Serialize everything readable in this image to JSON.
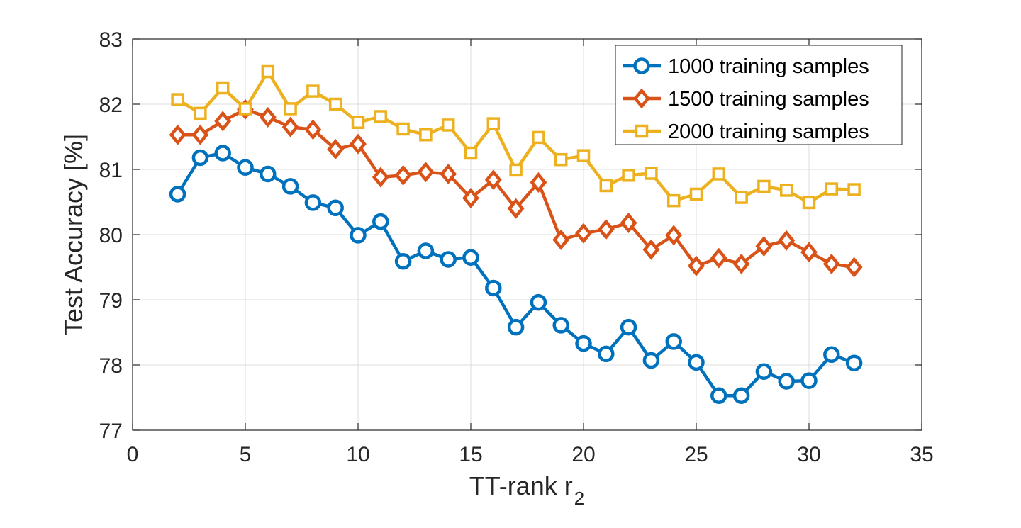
{
  "chart_data": {
    "type": "line",
    "title": "",
    "xlabel": "TT-rank r",
    "xlabel_subscript": "2",
    "ylabel": "Test Accuracy [%]",
    "xlim": [
      0,
      35
    ],
    "ylim": [
      77,
      83
    ],
    "xticks": [
      0,
      5,
      10,
      15,
      20,
      25,
      30,
      35
    ],
    "yticks": [
      77,
      78,
      79,
      80,
      81,
      82,
      83
    ],
    "grid": true,
    "legend_position": "top-right",
    "x": [
      2,
      3,
      4,
      5,
      6,
      7,
      8,
      9,
      10,
      11,
      12,
      13,
      14,
      15,
      16,
      17,
      18,
      19,
      20,
      21,
      22,
      23,
      24,
      25,
      26,
      27,
      28,
      29,
      30,
      31,
      32
    ],
    "series": [
      {
        "name": "1000 training samples",
        "color": "#0072BD",
        "marker": "circle",
        "values": [
          80.62,
          81.18,
          81.25,
          81.03,
          80.93,
          80.74,
          80.49,
          80.41,
          79.99,
          80.2,
          79.59,
          79.75,
          79.62,
          79.65,
          79.18,
          78.58,
          78.96,
          78.61,
          78.33,
          78.17,
          78.58,
          78.07,
          78.36,
          78.04,
          77.53,
          77.53,
          77.9,
          77.75,
          77.76,
          78.16,
          78.03
        ]
      },
      {
        "name": "1500 training samples",
        "color": "#D95319",
        "marker": "diamond",
        "values": [
          81.53,
          81.53,
          81.74,
          81.92,
          81.8,
          81.65,
          81.61,
          81.31,
          81.39,
          80.88,
          80.91,
          80.96,
          80.93,
          80.56,
          80.84,
          80.4,
          80.8,
          79.92,
          80.02,
          80.08,
          80.18,
          79.77,
          79.99,
          79.52,
          79.64,
          79.55,
          79.82,
          79.91,
          79.73,
          79.55,
          79.5
        ]
      },
      {
        "name": "2000 training samples",
        "color": "#EDB120",
        "marker": "square",
        "values": [
          82.07,
          81.86,
          82.25,
          81.93,
          82.5,
          81.93,
          82.2,
          82.0,
          81.72,
          81.81,
          81.62,
          81.53,
          81.68,
          81.25,
          81.7,
          80.99,
          81.49,
          81.15,
          81.21,
          80.75,
          80.91,
          80.94,
          80.52,
          80.62,
          80.93,
          80.57,
          80.74,
          80.68,
          80.49,
          80.7,
          80.69
        ]
      }
    ]
  }
}
